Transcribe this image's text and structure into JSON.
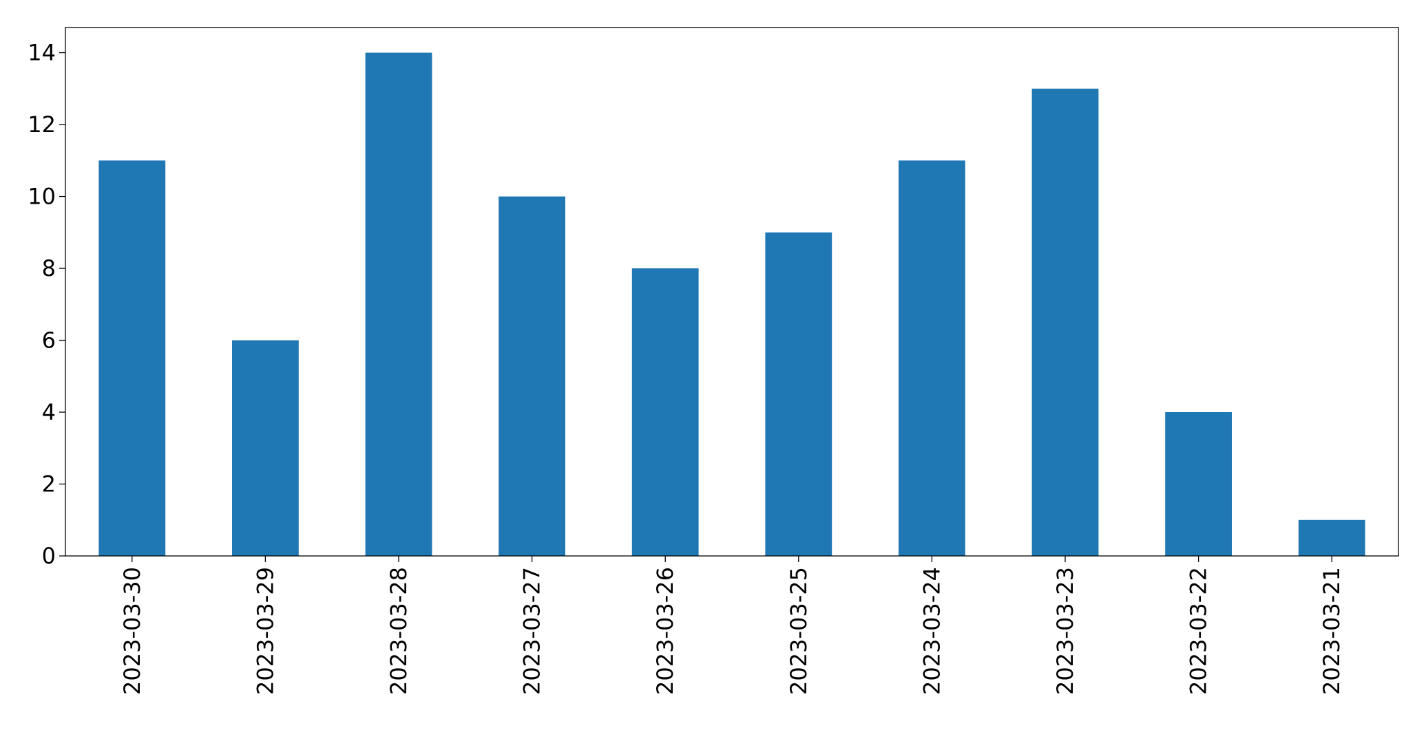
{
  "chart_data": {
    "type": "bar",
    "categories": [
      "2023-03-30",
      "2023-03-29",
      "2023-03-28",
      "2023-03-27",
      "2023-03-26",
      "2023-03-25",
      "2023-03-24",
      "2023-03-23",
      "2023-03-22",
      "2023-03-21"
    ],
    "values": [
      11,
      6,
      14,
      10,
      8,
      9,
      11,
      13,
      4,
      1
    ],
    "color": "#1f77b4",
    "ylim": [
      0,
      14.7
    ],
    "yticks": [
      0,
      2,
      4,
      6,
      8,
      10,
      12,
      14
    ],
    "grid": false
  }
}
